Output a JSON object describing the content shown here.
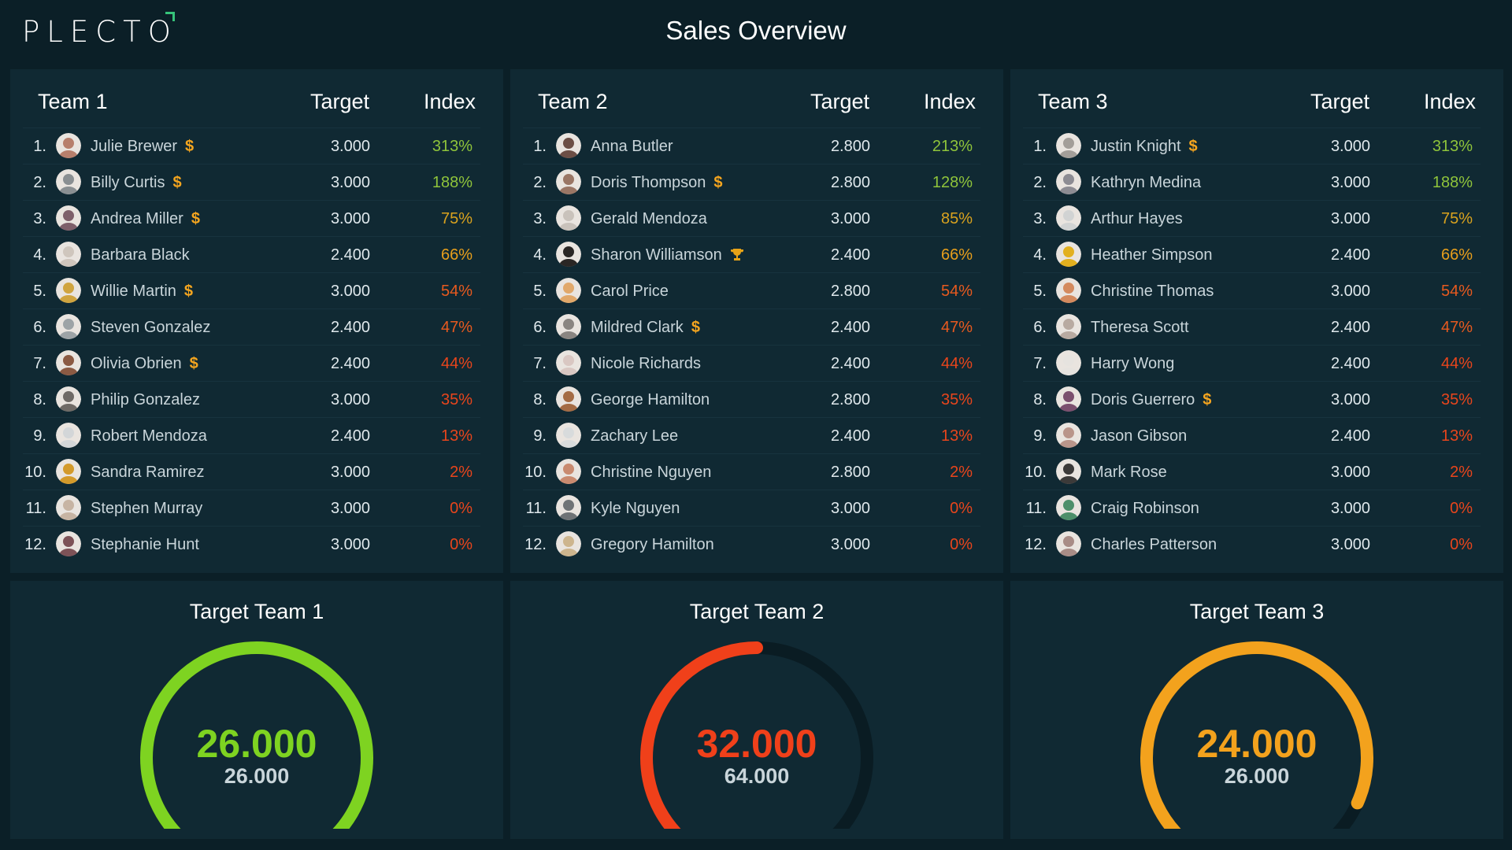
{
  "app": {
    "logo": "PLECTO",
    "title": "Sales Overview"
  },
  "colors": {
    "green": "#7ed321",
    "lightgreen": "#9fcc4a",
    "orange": "#f3a21d",
    "darkorange": "#e2701a",
    "red": "#f0401a",
    "dollar": "#f4a51f",
    "trophy": "#e8a317"
  },
  "table_headers": {
    "target": "Target",
    "index": "Index"
  },
  "teams": [
    {
      "name": "Team 1",
      "rows": [
        {
          "rank": "1.",
          "name": "Julie Brewer",
          "badge": "$",
          "target": "3.000",
          "index": "313%",
          "color": "#8fc43b",
          "avatar": "#b77f6c"
        },
        {
          "rank": "2.",
          "name": "Billy Curtis",
          "badge": "$",
          "target": "3.000",
          "index": "188%",
          "color": "#8fc43b",
          "avatar": "#8a8f92"
        },
        {
          "rank": "3.",
          "name": "Andrea Miller",
          "badge": "$",
          "target": "3.000",
          "index": "75%",
          "color": "#d9a21e",
          "avatar": "#7e5f6a"
        },
        {
          "rank": "4.",
          "name": "Barbara Black",
          "badge": "",
          "target": "2.400",
          "index": "66%",
          "color": "#e89f1c",
          "avatar": "#cfc6bd"
        },
        {
          "rank": "5.",
          "name": "Willie Martin",
          "badge": "$",
          "target": "3.000",
          "index": "54%",
          "color": "#e85a1f",
          "avatar": "#d0a43f"
        },
        {
          "rank": "6.",
          "name": "Steven Gonzalez",
          "badge": "",
          "target": "2.400",
          "index": "47%",
          "color": "#e85a1f",
          "avatar": "#9da3a6"
        },
        {
          "rank": "7.",
          "name": "Olivia Obrien",
          "badge": "$",
          "target": "2.400",
          "index": "44%",
          "color": "#e8451c",
          "avatar": "#8b5a43"
        },
        {
          "rank": "8.",
          "name": "Philip Gonzalez",
          "badge": "",
          "target": "3.000",
          "index": "35%",
          "color": "#e8451c",
          "avatar": "#6f6a66"
        },
        {
          "rank": "9.",
          "name": "Robert Mendoza",
          "badge": "",
          "target": "2.400",
          "index": "13%",
          "color": "#e8451c",
          "avatar": "#d3d6d8"
        },
        {
          "rank": "10.",
          "name": "Sandra Ramirez",
          "badge": "",
          "target": "3.000",
          "index": "2%",
          "color": "#e8451c",
          "avatar": "#d39a2b"
        },
        {
          "rank": "11.",
          "name": "Stephen Murray",
          "badge": "",
          "target": "3.000",
          "index": "0%",
          "color": "#e8451c",
          "avatar": "#c7b4a3"
        },
        {
          "rank": "12.",
          "name": "Stephanie Hunt",
          "badge": "",
          "target": "3.000",
          "index": "0%",
          "color": "#e8451c",
          "avatar": "#7d5257"
        }
      ]
    },
    {
      "name": "Team 2",
      "rows": [
        {
          "rank": "1.",
          "name": "Anna Butler",
          "badge": "",
          "target": "2.800",
          "index": "213%",
          "color": "#8fc43b",
          "avatar": "#6c4e45"
        },
        {
          "rank": "2.",
          "name": "Doris Thompson",
          "badge": "$",
          "target": "2.800",
          "index": "128%",
          "color": "#8fc43b",
          "avatar": "#9a7665"
        },
        {
          "rank": "3.",
          "name": "Gerald Mendoza",
          "badge": "",
          "target": "3.000",
          "index": "85%",
          "color": "#d9a21e",
          "avatar": "#c9c2bb"
        },
        {
          "rank": "4.",
          "name": "Sharon Williamson",
          "badge": "trophy",
          "target": "2.400",
          "index": "66%",
          "color": "#e89f1c",
          "avatar": "#2a2624"
        },
        {
          "rank": "5.",
          "name": "Carol Price",
          "badge": "",
          "target": "2.800",
          "index": "54%",
          "color": "#e85a1f",
          "avatar": "#e1a86a"
        },
        {
          "rank": "6.",
          "name": "Mildred Clark",
          "badge": "$",
          "target": "2.400",
          "index": "47%",
          "color": "#e85a1f",
          "avatar": "#8a8581"
        },
        {
          "rank": "7.",
          "name": "Nicole Richards",
          "badge": "",
          "target": "2.400",
          "index": "44%",
          "color": "#e8451c",
          "avatar": "#d9c7c2"
        },
        {
          "rank": "8.",
          "name": "George Hamilton",
          "badge": "",
          "target": "2.800",
          "index": "35%",
          "color": "#e8451c",
          "avatar": "#a46b44"
        },
        {
          "rank": "9.",
          "name": "Zachary Lee",
          "badge": "",
          "target": "2.400",
          "index": "13%",
          "color": "#e8451c",
          "avatar": "#d8dbdc"
        },
        {
          "rank": "10.",
          "name": "Christine Nguyen",
          "badge": "",
          "target": "2.800",
          "index": "2%",
          "color": "#e8451c",
          "avatar": "#c98a6f"
        },
        {
          "rank": "11.",
          "name": "Kyle Nguyen",
          "badge": "",
          "target": "3.000",
          "index": "0%",
          "color": "#e8451c",
          "avatar": "#6f7376"
        },
        {
          "rank": "12.",
          "name": "Gregory Hamilton",
          "badge": "",
          "target": "3.000",
          "index": "0%",
          "color": "#e8451c",
          "avatar": "#cdb58e"
        }
      ]
    },
    {
      "name": "Team 3",
      "rows": [
        {
          "rank": "1.",
          "name": "Justin Knight",
          "badge": "$",
          "target": "3.000",
          "index": "313%",
          "color": "#8fc43b",
          "avatar": "#a39e99"
        },
        {
          "rank": "2.",
          "name": "Kathryn Medina",
          "badge": "",
          "target": "3.000",
          "index": "188%",
          "color": "#8fc43b",
          "avatar": "#8d8c93"
        },
        {
          "rank": "3.",
          "name": "Arthur Hayes",
          "badge": "",
          "target": "3.000",
          "index": "75%",
          "color": "#d9a21e",
          "avatar": "#d1d3d3"
        },
        {
          "rank": "4.",
          "name": "Heather Simpson",
          "badge": "",
          "target": "2.400",
          "index": "66%",
          "color": "#e89f1c",
          "avatar": "#e2b01f"
        },
        {
          "rank": "5.",
          "name": "Christine Thomas",
          "badge": "",
          "target": "3.000",
          "index": "54%",
          "color": "#e85a1f",
          "avatar": "#d48a5e"
        },
        {
          "rank": "6.",
          "name": "Theresa Scott",
          "badge": "",
          "target": "2.400",
          "index": "47%",
          "color": "#e85a1f",
          "avatar": "#b8aaa1"
        },
        {
          "rank": "7.",
          "name": "Harry Wong",
          "badge": "",
          "target": "2.400",
          "index": "44%",
          "color": "#e8451c",
          "avatar": "#e6e3df"
        },
        {
          "rank": "8.",
          "name": "Doris Guerrero",
          "badge": "$",
          "target": "3.000",
          "index": "35%",
          "color": "#e8451c",
          "avatar": "#7b4f6e"
        },
        {
          "rank": "9.",
          "name": "Jason Gibson",
          "badge": "",
          "target": "2.400",
          "index": "13%",
          "color": "#e8451c",
          "avatar": "#b9958a"
        },
        {
          "rank": "10.",
          "name": "Mark Rose",
          "badge": "",
          "target": "3.000",
          "index": "2%",
          "color": "#e8451c",
          "avatar": "#3c3a39"
        },
        {
          "rank": "11.",
          "name": "Craig Robinson",
          "badge": "",
          "target": "3.000",
          "index": "0%",
          "color": "#e8451c",
          "avatar": "#4d8f6a"
        },
        {
          "rank": "12.",
          "name": "Charles Patterson",
          "badge": "",
          "target": "3.000",
          "index": "0%",
          "color": "#e8451c",
          "avatar": "#a88c86"
        }
      ]
    }
  ],
  "gauges": [
    {
      "title": "Target Team 1",
      "value": "26.000",
      "target": "26.000",
      "fraction": 1.0,
      "color": "#7ed321"
    },
    {
      "title": "Target Team 2",
      "value": "32.000",
      "target": "64.000",
      "fraction": 0.5,
      "color": "#f0401a"
    },
    {
      "title": "Target Team 3",
      "value": "24.000",
      "target": "26.000",
      "fraction": 0.923,
      "color": "#f3a21d"
    }
  ]
}
